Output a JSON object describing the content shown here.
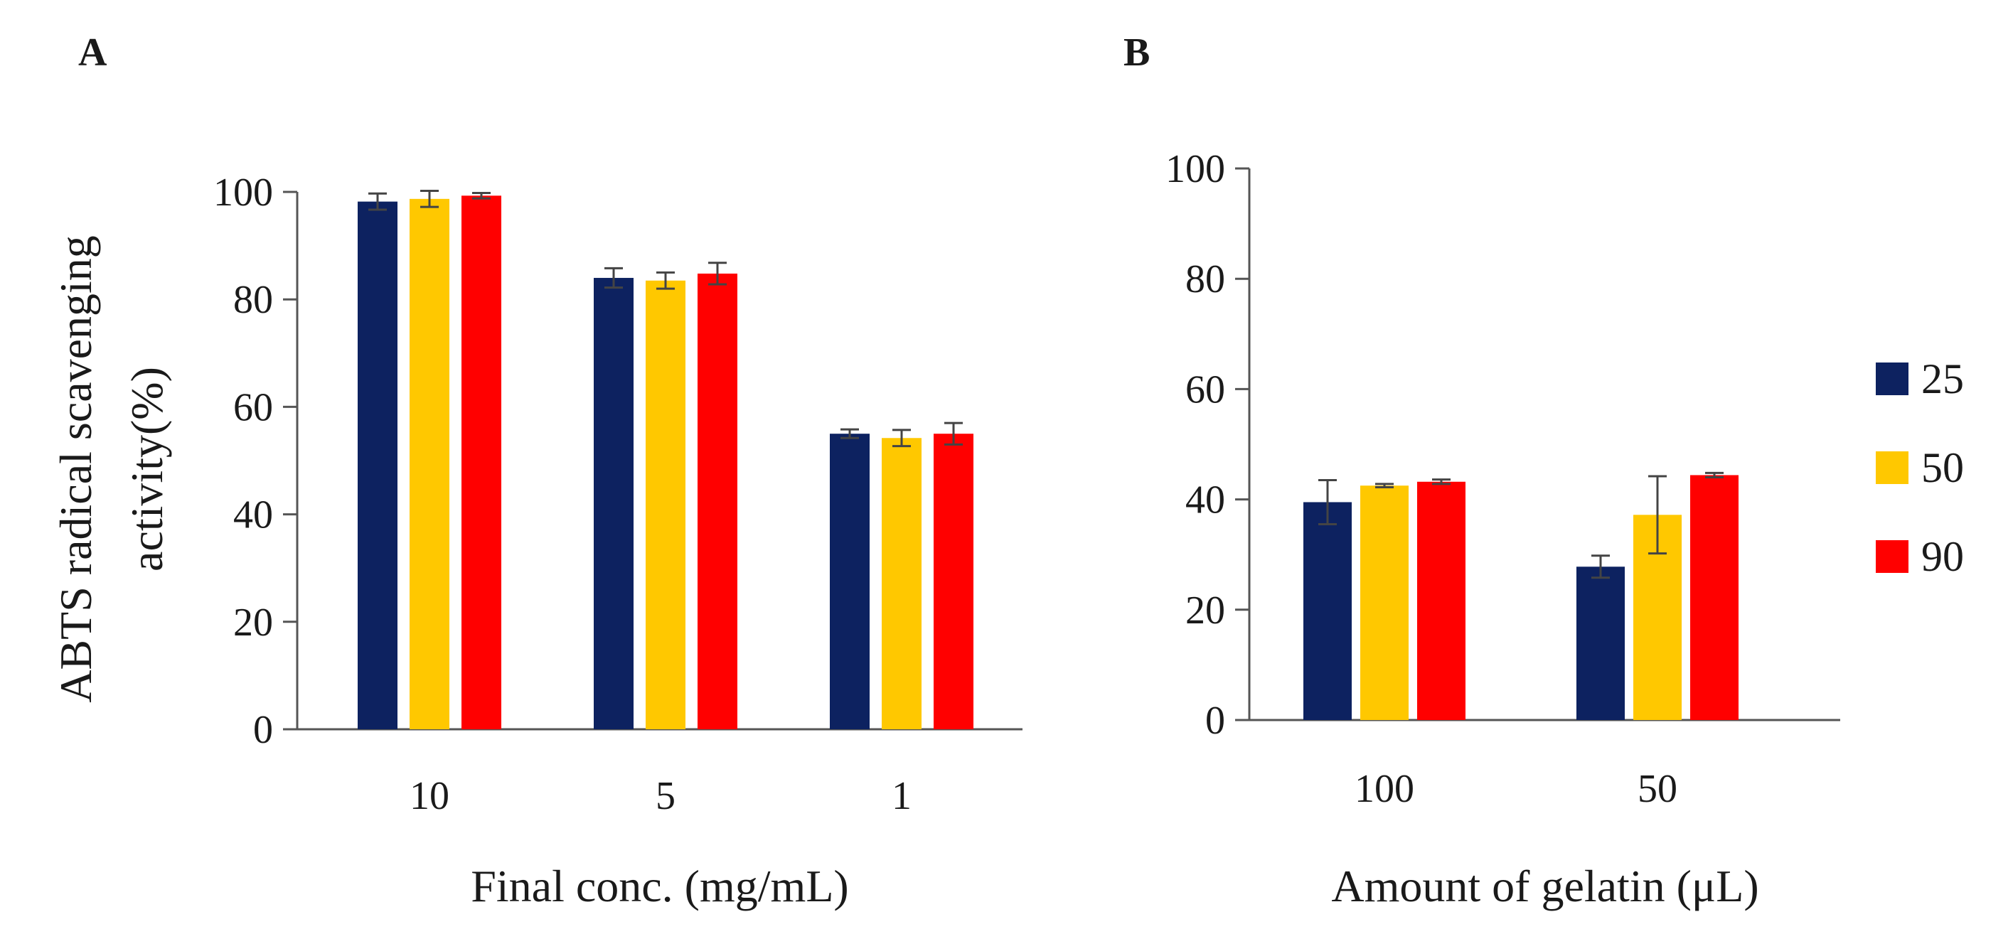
{
  "colors": {
    "25": "#0d2260",
    "50": "#ffc800",
    "90": "#ff0000",
    "axis": "#555555",
    "text": "#1a1a1a"
  },
  "legend": {
    "items": [
      {
        "label": "25",
        "color": "#0d2260"
      },
      {
        "label": "50",
        "color": "#ffc800"
      },
      {
        "label": "90",
        "color": "#ff0000"
      }
    ]
  },
  "chart_data": [
    {
      "panel": "A",
      "type": "bar",
      "categories": [
        "10",
        "5",
        "1"
      ],
      "series": [
        {
          "name": "25",
          "values": [
            98.2,
            84.0,
            55.0
          ],
          "errors": [
            1.5,
            1.8,
            0.8
          ]
        },
        {
          "name": "50",
          "values": [
            98.7,
            83.5,
            54.2
          ],
          "errors": [
            1.5,
            1.5,
            1.5
          ]
        },
        {
          "name": "90",
          "values": [
            99.3,
            84.8,
            55.0
          ],
          "errors": [
            0.5,
            2.0,
            2.0
          ]
        }
      ],
      "xlabel": "Final conc. (mg/mL)",
      "ylabel_lines": [
        "ABTS radical scavenging",
        "activity(%)"
      ],
      "ylim": [
        0,
        100
      ],
      "yticks": [
        0,
        20,
        40,
        60,
        80,
        100
      ],
      "grid": false
    },
    {
      "panel": "B",
      "type": "bar",
      "categories": [
        "100",
        "50"
      ],
      "series": [
        {
          "name": "25",
          "values": [
            39.5,
            27.8
          ],
          "errors": [
            4.0,
            2.0
          ]
        },
        {
          "name": "50",
          "values": [
            42.5,
            37.2
          ],
          "errors": [
            0.3,
            7.0
          ]
        },
        {
          "name": "90",
          "values": [
            43.2,
            44.4
          ],
          "errors": [
            0.4,
            0.4
          ]
        }
      ],
      "xlabel": "Amount of gelatin (μL)",
      "ylim": [
        0,
        100
      ],
      "yticks": [
        0,
        20,
        40,
        60,
        80,
        100
      ],
      "grid": false,
      "legend_position": "right"
    }
  ]
}
